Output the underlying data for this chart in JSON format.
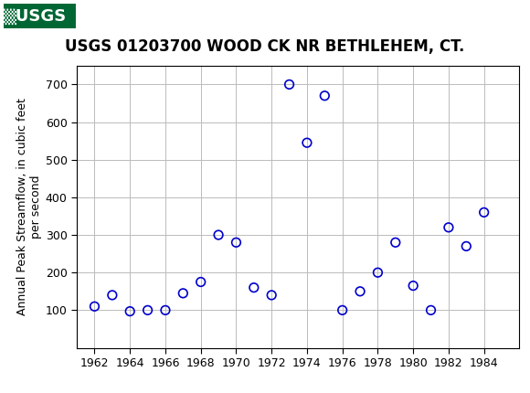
{
  "title": "USGS 01203700 WOOD CK NR BETHLEHEM, CT.",
  "ylabel_line1": "Annual Peak Streamflow, in cubic feet",
  "ylabel_line2": "per second",
  "years": [
    1962,
    1963,
    1964,
    1965,
    1966,
    1967,
    1968,
    1969,
    1970,
    1971,
    1972,
    1973,
    1974,
    1975,
    1976,
    1977,
    1978,
    1979,
    1980,
    1981,
    1982,
    1983,
    1984
  ],
  "flows": [
    110,
    140,
    97,
    100,
    100,
    145,
    175,
    300,
    280,
    160,
    140,
    700,
    545,
    670,
    100,
    150,
    200,
    280,
    165,
    100,
    320,
    270,
    360
  ],
  "xlim": [
    1961,
    1986
  ],
  "ylim": [
    0,
    750
  ],
  "xticks": [
    1962,
    1964,
    1966,
    1968,
    1970,
    1972,
    1974,
    1976,
    1978,
    1980,
    1982,
    1984
  ],
  "yticks": [
    100,
    200,
    300,
    400,
    500,
    600,
    700
  ],
  "header_color": "#006633",
  "marker_color": "#0000CC",
  "marker_size": 48,
  "marker_lw": 1.2,
  "grid_color": "#BBBBBB",
  "background_color": "#FFFFFF",
  "title_fontsize": 12,
  "tick_fontsize": 9,
  "ylabel_fontsize": 9,
  "header_logo_text": "▒USGS",
  "header_logo_fontsize": 13
}
